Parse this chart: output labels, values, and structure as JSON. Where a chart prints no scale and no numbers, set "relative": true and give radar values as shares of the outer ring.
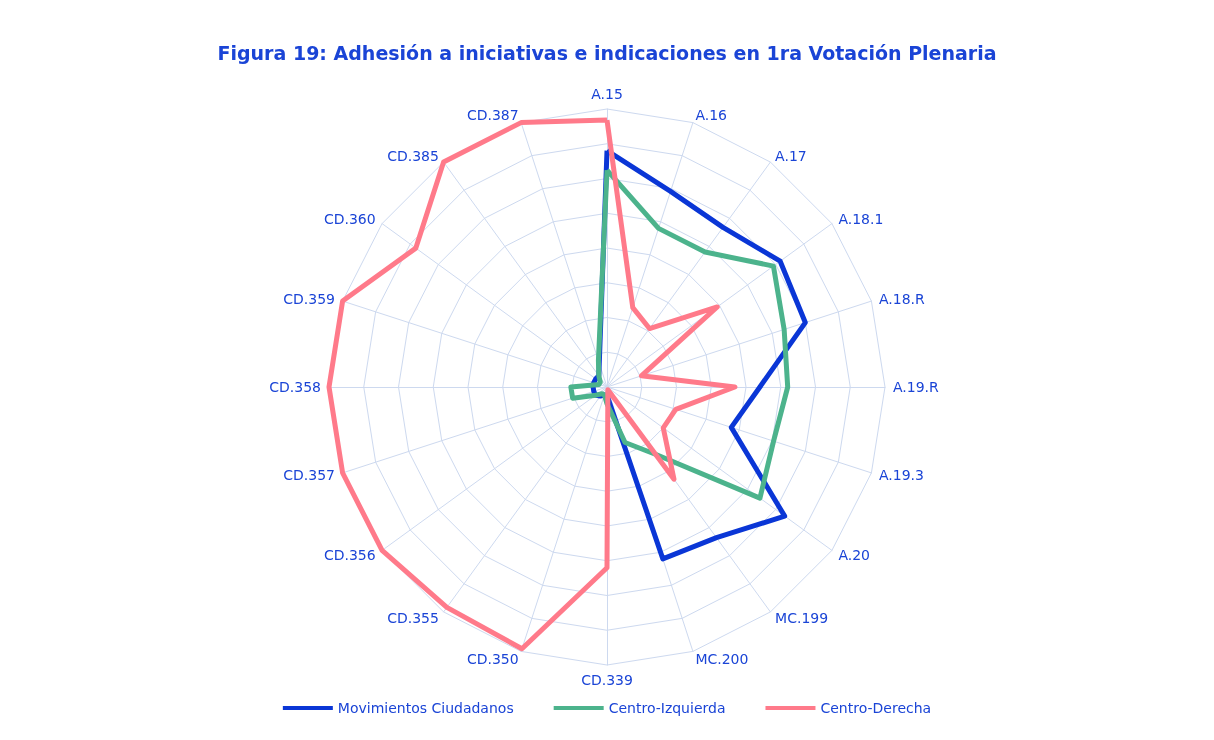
{
  "chart_data": {
    "type": "radar",
    "title": "Figura 19: Adhesión a iniciativas e indicaciones en 1ra Votación Plenaria",
    "categories": [
      "A.15",
      "A.16",
      "A.17",
      "A.18.1",
      "A.18.R",
      "A.19.R",
      "A.19.3",
      "A.20",
      "MC.199",
      "MC.200",
      "CD.339",
      "CD.350",
      "CD.355",
      "CD.356",
      "CD.357",
      "CD.358",
      "CD.359",
      "CD.360",
      "CD.385",
      "CD.387"
    ],
    "relative": true,
    "grid": true,
    "legend": "bottom",
    "marker": "none",
    "line_style": "solid",
    "series": [
      {
        "name": "Movimientos Ciudadanos",
        "color": "#0a36d6",
        "values": [
          0.85,
          0.74,
          0.71,
          0.77,
          0.75,
          0.55,
          0.47,
          0.79,
          0.67,
          0.65,
          0.03,
          0.03,
          0.04,
          0.05,
          0.05,
          0.05,
          0.05,
          0.05,
          0.05,
          0.09
        ]
      },
      {
        "name": "Centro-Izquierda",
        "color": "#4cb38c",
        "values": [
          0.78,
          0.6,
          0.6,
          0.74,
          0.67,
          0.65,
          0.63,
          0.68,
          0.3,
          0.21,
          0.06,
          0.03,
          0.03,
          0.05,
          0.13,
          0.13,
          0.03,
          0.03,
          0.05,
          0.1
        ]
      },
      {
        "name": "Centro-Derecha",
        "color": "#ff7a8a",
        "values": [
          0.96,
          0.3,
          0.26,
          0.49,
          0.13,
          0.46,
          0.26,
          0.25,
          0.41,
          0.01,
          0.65,
          0.99,
          0.98,
          1,
          1,
          1,
          1,
          0.85,
          1,
          1
        ]
      }
    ]
  }
}
